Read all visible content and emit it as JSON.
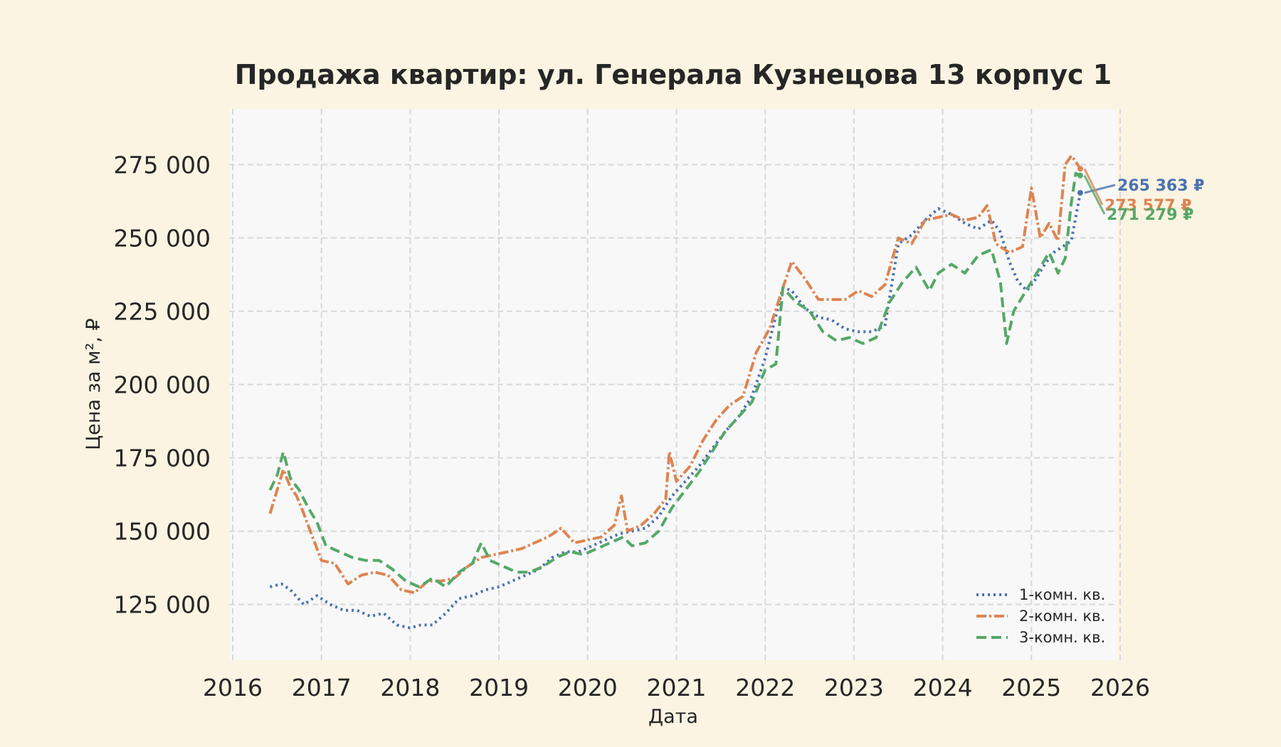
{
  "chart_data": {
    "type": "line",
    "title": "Продажа квартир: ул. Генерала Кузнецова 13 корпус 1",
    "xlabel": "Дата",
    "ylabel": "Цена за м², ₽",
    "xlim": [
      2016.0,
      2026.0
    ],
    "ylim": [
      106000,
      294000
    ],
    "x_ticks": [
      "2016",
      "2017",
      "2018",
      "2019",
      "2020",
      "2021",
      "2022",
      "2023",
      "2024",
      "2025",
      "2026"
    ],
    "y_ticks": [
      "125 000",
      "150 000",
      "175 000",
      "200 000",
      "225 000",
      "250 000",
      "275 000"
    ],
    "y_tick_values": [
      125000,
      150000,
      175000,
      200000,
      225000,
      250000,
      275000
    ],
    "grid": true,
    "legend_position": "lower right",
    "series": [
      {
        "name": "1-комн. кв.",
        "color": "#4c72b0",
        "style": "dotted",
        "end_label": "265 363 ₽",
        "x": [
          2016.42,
          2016.55,
          2016.65,
          2016.8,
          2016.95,
          2017.1,
          2017.25,
          2017.4,
          2017.55,
          2017.7,
          2017.85,
          2018.0,
          2018.12,
          2018.25,
          2018.4,
          2018.55,
          2018.7,
          2018.85,
          2019.0,
          2019.15,
          2019.3,
          2019.45,
          2019.6,
          2019.75,
          2019.9,
          2020.05,
          2020.2,
          2020.35,
          2020.5,
          2020.65,
          2020.8,
          2020.95,
          2021.1,
          2021.25,
          2021.4,
          2021.55,
          2021.7,
          2021.85,
          2022.0,
          2022.1,
          2022.2,
          2022.3,
          2022.45,
          2022.6,
          2022.75,
          2022.9,
          2023.05,
          2023.2,
          2023.35,
          2023.5,
          2023.65,
          2023.8,
          2023.95,
          2024.1,
          2024.25,
          2024.4,
          2024.55,
          2024.65,
          2024.75,
          2024.85,
          2024.95,
          2025.05,
          2025.15,
          2025.25,
          2025.35,
          2025.45,
          2025.55
        ],
        "y": [
          131000,
          132000,
          130000,
          125000,
          128000,
          125000,
          123000,
          123000,
          121000,
          122000,
          118000,
          117000,
          118000,
          118000,
          122000,
          127000,
          128000,
          130000,
          131000,
          133000,
          135000,
          137000,
          141000,
          143000,
          143000,
          145000,
          147000,
          149000,
          150000,
          151000,
          155000,
          162000,
          167000,
          172000,
          178000,
          184000,
          189000,
          196000,
          209000,
          221000,
          233000,
          232000,
          226000,
          223000,
          222000,
          219000,
          218000,
          218000,
          220000,
          248000,
          251000,
          256000,
          260000,
          258000,
          255000,
          253000,
          256000,
          252000,
          242000,
          235000,
          232000,
          236000,
          241000,
          245000,
          247000,
          249000,
          265363
        ]
      },
      {
        "name": "2-комн. кв.",
        "color": "#dd8452",
        "style": "dashdot",
        "end_label": "273 577 ₽",
        "x": [
          2016.42,
          2016.5,
          2016.57,
          2016.65,
          2016.72,
          2016.8,
          2016.9,
          2017.0,
          2017.15,
          2017.3,
          2017.45,
          2017.6,
          2017.75,
          2017.9,
          2018.05,
          2018.2,
          2018.35,
          2018.5,
          2018.65,
          2018.8,
          2018.95,
          2019.1,
          2019.25,
          2019.4,
          2019.55,
          2019.7,
          2019.85,
          2020.0,
          2020.15,
          2020.3,
          2020.38,
          2020.45,
          2020.6,
          2020.75,
          2020.88,
          2020.92,
          2021.0,
          2021.15,
          2021.3,
          2021.45,
          2021.6,
          2021.75,
          2021.9,
          2022.05,
          2022.2,
          2022.3,
          2022.45,
          2022.6,
          2022.75,
          2022.9,
          2023.05,
          2023.2,
          2023.35,
          2023.5,
          2023.65,
          2023.8,
          2023.95,
          2024.1,
          2024.25,
          2024.4,
          2024.5,
          2024.6,
          2024.75,
          2024.9,
          2025.0,
          2025.1,
          2025.2,
          2025.3,
          2025.38,
          2025.45,
          2025.5,
          2025.55
        ],
        "y": [
          156000,
          164000,
          171000,
          165000,
          162000,
          156000,
          148000,
          140000,
          139000,
          132000,
          135000,
          136000,
          135000,
          130000,
          129000,
          133000,
          133000,
          134000,
          138000,
          141000,
          142000,
          143000,
          144000,
          146000,
          148000,
          151000,
          146000,
          147000,
          148000,
          152000,
          162000,
          150000,
          152000,
          156000,
          161000,
          177000,
          167000,
          172000,
          181000,
          188000,
          193000,
          196000,
          211000,
          219000,
          233000,
          242000,
          236000,
          229000,
          229000,
          229000,
          232000,
          230000,
          234000,
          250000,
          248000,
          256000,
          257000,
          258000,
          256000,
          257000,
          261000,
          248000,
          245000,
          247000,
          267000,
          250000,
          255000,
          249000,
          275000,
          278000,
          276000,
          273577
        ]
      },
      {
        "name": "3-комн. кв.",
        "color": "#55a868",
        "style": "dashed",
        "end_label": "271 279 ₽",
        "x": [
          2016.42,
          2016.5,
          2016.57,
          2016.65,
          2016.75,
          2016.85,
          2016.95,
          2017.05,
          2017.2,
          2017.35,
          2017.5,
          2017.65,
          2017.8,
          2017.95,
          2018.1,
          2018.25,
          2018.4,
          2018.55,
          2018.7,
          2018.8,
          2018.9,
          2019.05,
          2019.2,
          2019.35,
          2019.5,
          2019.65,
          2019.8,
          2019.95,
          2020.1,
          2020.25,
          2020.4,
          2020.5,
          2020.65,
          2020.8,
          2020.95,
          2021.1,
          2021.25,
          2021.4,
          2021.55,
          2021.7,
          2021.85,
          2022.0,
          2022.12,
          2022.2,
          2022.35,
          2022.5,
          2022.65,
          2022.8,
          2022.95,
          2023.1,
          2023.25,
          2023.4,
          2023.55,
          2023.7,
          2023.85,
          2023.95,
          2024.1,
          2024.25,
          2024.4,
          2024.55,
          2024.65,
          2024.72,
          2024.8,
          2024.9,
          2025.0,
          2025.1,
          2025.2,
          2025.3,
          2025.38,
          2025.45,
          2025.5,
          2025.55
        ],
        "y": [
          164000,
          169000,
          177000,
          168000,
          164000,
          158000,
          153000,
          145000,
          143000,
          141000,
          140000,
          140000,
          137000,
          133000,
          131000,
          134000,
          131000,
          136000,
          139000,
          146000,
          140000,
          138000,
          136000,
          136000,
          138000,
          141000,
          143000,
          142000,
          144000,
          146000,
          148000,
          145000,
          146000,
          150000,
          158000,
          164000,
          170000,
          177000,
          184000,
          189000,
          194000,
          205000,
          207000,
          233000,
          228000,
          225000,
          218000,
          215000,
          216000,
          214000,
          216000,
          228000,
          235000,
          240000,
          232000,
          238000,
          241000,
          238000,
          244000,
          246000,
          235000,
          214000,
          225000,
          230000,
          235000,
          240000,
          245000,
          238000,
          243000,
          262000,
          272000,
          271279
        ]
      }
    ]
  }
}
